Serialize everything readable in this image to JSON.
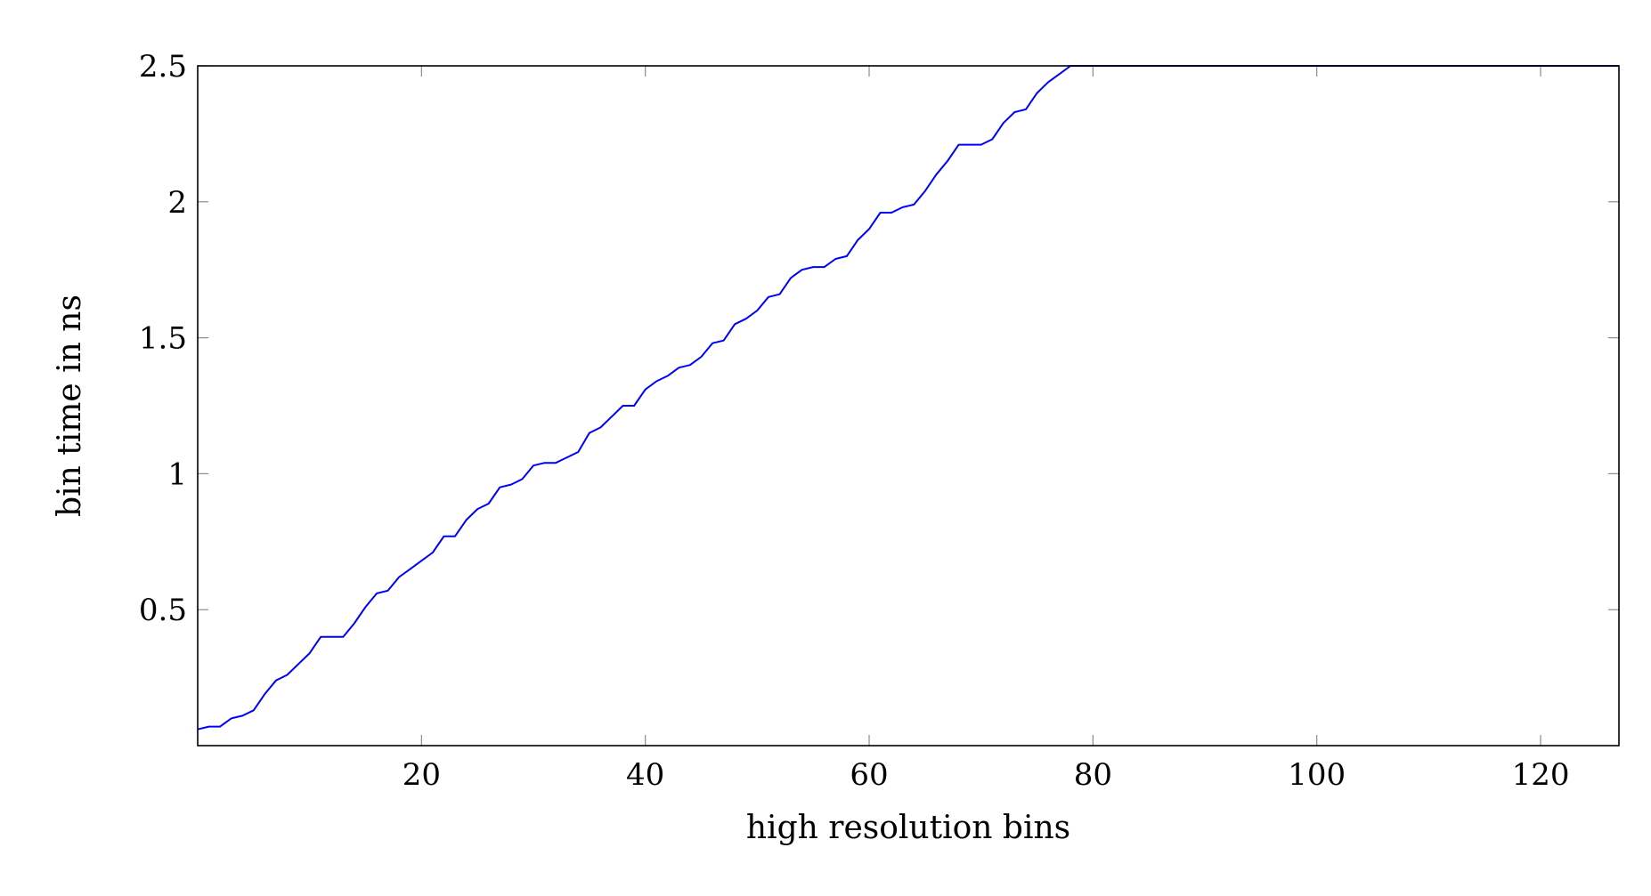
{
  "chart_data": {
    "type": "line",
    "title": "",
    "xlabel": "high resolution bins",
    "ylabel": "bin time in ns",
    "xlim": [
      0,
      127
    ],
    "ylim": [
      0,
      2.5
    ],
    "grid": false,
    "x_ticks": [
      20,
      40,
      60,
      80,
      100,
      120
    ],
    "x_tick_labels": [
      "20",
      "40",
      "60",
      "80",
      "100",
      "120"
    ],
    "y_ticks": [
      0.5,
      1,
      1.5,
      2,
      2.5
    ],
    "y_tick_labels": [
      "0.5",
      "1",
      "1.5",
      "2",
      "2.5"
    ],
    "series_color": "#0000ff",
    "series": [
      {
        "x": [
          0,
          1,
          2,
          3,
          4,
          5,
          6,
          7,
          8,
          9,
          10,
          11,
          12,
          13,
          14,
          15,
          16,
          17,
          18,
          19,
          20,
          21,
          22,
          23,
          24,
          25,
          26,
          27,
          28,
          29,
          30,
          31,
          32,
          33,
          34,
          35,
          36,
          37,
          38,
          39,
          40,
          41,
          42,
          43,
          44,
          45,
          46,
          47,
          48,
          49,
          50,
          51,
          52,
          53,
          54,
          55,
          56,
          57,
          58,
          59,
          60,
          61,
          62,
          63,
          64,
          65,
          66,
          67,
          68,
          69,
          70,
          71,
          72,
          73,
          74,
          75,
          76,
          77,
          78,
          127
        ],
        "y": [
          0.06,
          0.07,
          0.07,
          0.1,
          0.11,
          0.13,
          0.19,
          0.24,
          0.26,
          0.3,
          0.34,
          0.4,
          0.4,
          0.4,
          0.45,
          0.51,
          0.56,
          0.57,
          0.62,
          0.65,
          0.68,
          0.71,
          0.77,
          0.77,
          0.83,
          0.87,
          0.89,
          0.95,
          0.96,
          0.98,
          1.03,
          1.04,
          1.04,
          1.06,
          1.08,
          1.15,
          1.17,
          1.21,
          1.25,
          1.25,
          1.31,
          1.34,
          1.36,
          1.39,
          1.4,
          1.43,
          1.48,
          1.49,
          1.55,
          1.57,
          1.6,
          1.65,
          1.66,
          1.72,
          1.75,
          1.76,
          1.76,
          1.79,
          1.8,
          1.86,
          1.9,
          1.96,
          1.96,
          1.98,
          1.99,
          2.04,
          2.1,
          2.15,
          2.21,
          2.21,
          2.21,
          2.23,
          2.29,
          2.33,
          2.34,
          2.4,
          2.44,
          2.47,
          2.5,
          2.5
        ]
      }
    ]
  }
}
